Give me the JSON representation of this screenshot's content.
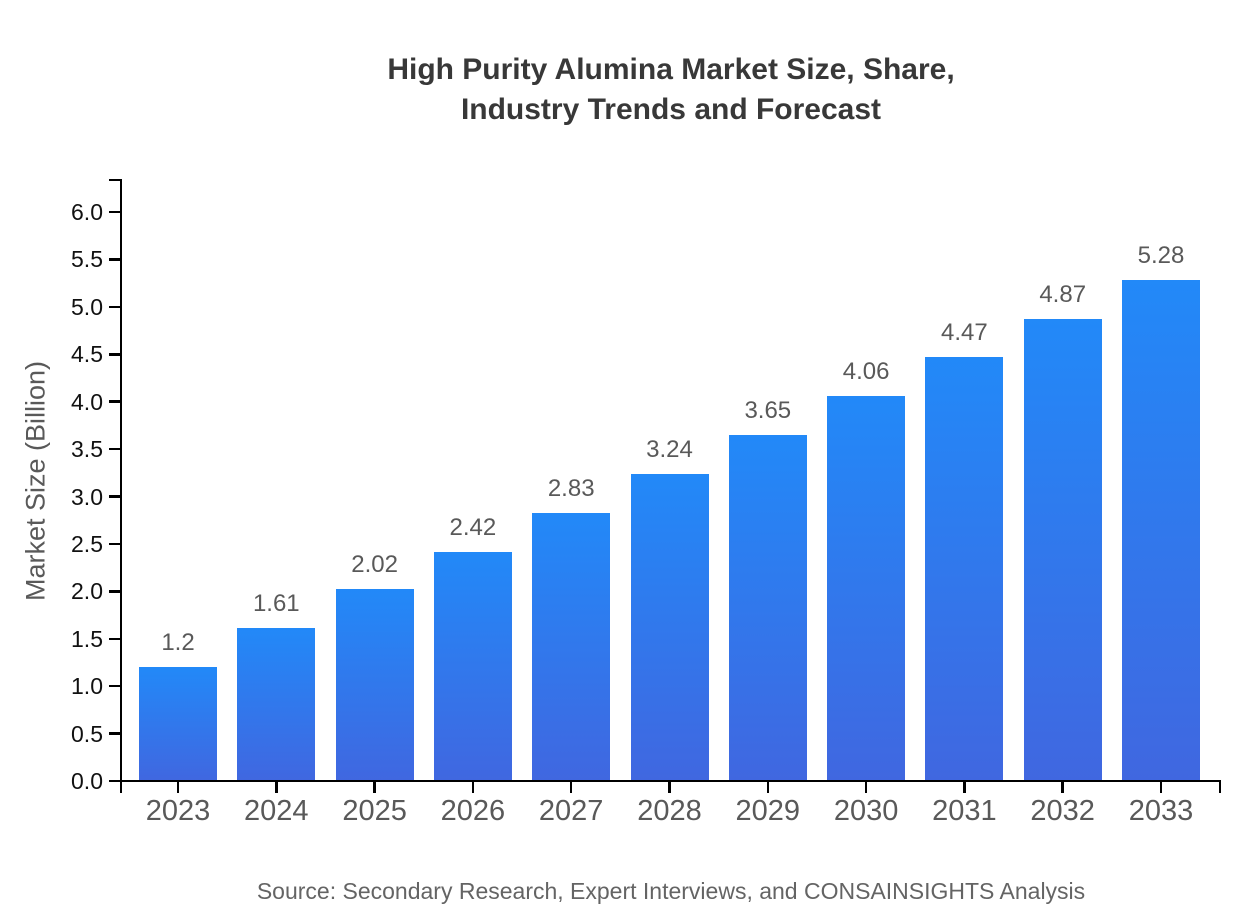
{
  "chart_data": {
    "type": "bar",
    "title": "High Purity Alumina Market Size, Share,\nIndustry Trends and Forecast",
    "ylabel": "Market Size (Billion)",
    "xlabel": "",
    "categories": [
      "2023",
      "2024",
      "2025",
      "2026",
      "2027",
      "2028",
      "2029",
      "2030",
      "2031",
      "2032",
      "2033"
    ],
    "values": [
      1.2,
      1.61,
      2.02,
      2.42,
      2.83,
      3.24,
      3.65,
      4.06,
      4.47,
      4.87,
      5.28
    ],
    "value_labels": [
      "1.2",
      "1.61",
      "2.02",
      "2.42",
      "2.83",
      "3.24",
      "3.65",
      "4.06",
      "4.47",
      "4.87",
      "5.28"
    ],
    "ylim": [
      0.0,
      6.0
    ],
    "ytick_step": 0.5,
    "grid": false,
    "legend": false,
    "source_note": "Source: Secondary Research, Expert Interviews, and CONSAINSIGHTS Analysis",
    "colors": {
      "bar_gradient_top": "#2289f8",
      "bar_gradient_bottom": "#4067e0",
      "axis": "#000000",
      "title_text": "#383838",
      "ytick_text": "#111111",
      "muted_text": "#595959",
      "source_text": "#646464",
      "background": "#ffffff"
    }
  }
}
